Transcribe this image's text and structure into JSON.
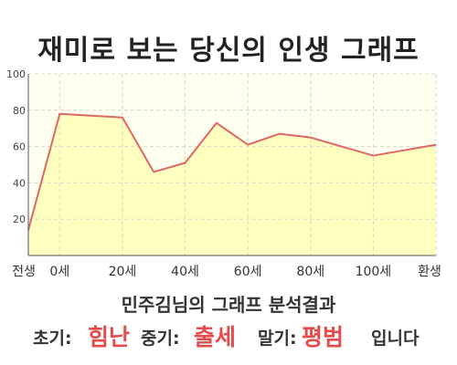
{
  "title": "재미로 보는 당신의 인생 그래프",
  "subtitle": "민주김님의 그래프 분석결과",
  "summary": {
    "early_label": "초기:",
    "early_value": "힘난",
    "middle_label": "중기:",
    "middle_value": "출세",
    "late_label": "말기:",
    "late_value": "평범",
    "ending": "입니다"
  },
  "colors": {
    "accent": "#e54b4b",
    "fill": "#ffffc0",
    "line": "#e06666",
    "plot_bg": "#fffff0"
  },
  "chart_data": {
    "type": "area",
    "ylim": [
      0,
      100
    ],
    "yticks": [
      20,
      40,
      60,
      80,
      100
    ],
    "xticks": [
      "전생",
      "0세",
      "20세",
      "40세",
      "60세",
      "80세",
      "100세",
      "환생"
    ],
    "grid": true,
    "series": [
      {
        "points": [
          {
            "x": -10,
            "y": 14
          },
          {
            "x": 0,
            "y": 78
          },
          {
            "x": 10,
            "y": 77
          },
          {
            "x": 20,
            "y": 76
          },
          {
            "x": 30,
            "y": 46
          },
          {
            "x": 40,
            "y": 51
          },
          {
            "x": 50,
            "y": 73
          },
          {
            "x": 60,
            "y": 61
          },
          {
            "x": 70,
            "y": 67
          },
          {
            "x": 80,
            "y": 65
          },
          {
            "x": 100,
            "y": 55
          },
          {
            "x": 120,
            "y": 61
          }
        ]
      }
    ]
  }
}
